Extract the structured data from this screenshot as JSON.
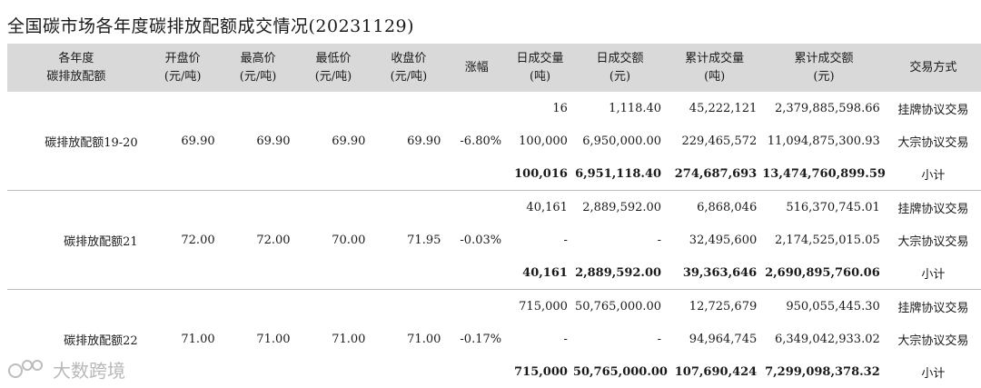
{
  "title": "全国碳市场各年度碳排放配额成交情况(20231129)",
  "headers": [
    {
      "l1": "各年度",
      "l2": "碳排放配额"
    },
    {
      "l1": "开盘价",
      "l2": "(元/吨)"
    },
    {
      "l1": "最高价",
      "l2": "(元/吨)"
    },
    {
      "l1": "最低价",
      "l2": "(元/吨)"
    },
    {
      "l1": "收盘价",
      "l2": "(元/吨)"
    },
    {
      "l1": "涨幅",
      "l2": ""
    },
    {
      "l1": "日成交量",
      "l2": "(吨)"
    },
    {
      "l1": "日成交额",
      "l2": "(元)"
    },
    {
      "l1": "累计成交量",
      "l2": "(吨)"
    },
    {
      "l1": "累计成交额",
      "l2": "(元)"
    },
    {
      "l1": "交易方式",
      "l2": ""
    }
  ],
  "groups": [
    {
      "name": "碳排放配额19-20",
      "open": "69.90",
      "high": "69.90",
      "low": "69.90",
      "close": "69.90",
      "change": "-6.80%",
      "rows": [
        {
          "vol": "16",
          "amt": "1,118.40",
          "cum_vol": "45,222,121",
          "cum_amt": "2,379,885,598.66",
          "mode": "挂牌协议交易"
        },
        {
          "vol": "100,000",
          "amt": "6,950,000.00",
          "cum_vol": "229,465,572",
          "cum_amt": "11,094,875,300.93",
          "mode": "大宗协议交易"
        },
        {
          "vol": "100,016",
          "amt": "6,951,118.40",
          "cum_vol": "274,687,693",
          "cum_amt": "13,474,760,899.59",
          "mode": "小计"
        }
      ]
    },
    {
      "name": "碳排放配额21",
      "open": "72.00",
      "high": "72.00",
      "low": "70.00",
      "close": "71.95",
      "change": "-0.03%",
      "rows": [
        {
          "vol": "40,161",
          "amt": "2,889,592.00",
          "cum_vol": "6,868,046",
          "cum_amt": "516,370,745.01",
          "mode": "挂牌协议交易"
        },
        {
          "vol": "-",
          "amt": "-",
          "cum_vol": "32,495,600",
          "cum_amt": "2,174,525,015.05",
          "mode": "大宗协议交易"
        },
        {
          "vol": "40,161",
          "amt": "2,889,592.00",
          "cum_vol": "39,363,646",
          "cum_amt": "2,690,895,760.06",
          "mode": "小计"
        }
      ]
    },
    {
      "name": "碳排放配额22",
      "open": "71.00",
      "high": "71.00",
      "low": "71.00",
      "close": "71.00",
      "change": "-0.17%",
      "rows": [
        {
          "vol": "715,000",
          "amt": "50,765,000.00",
          "cum_vol": "12,725,679",
          "cum_amt": "950,055,445.30",
          "mode": "挂牌协议交易"
        },
        {
          "vol": "-",
          "amt": "-",
          "cum_vol": "94,964,745",
          "cum_amt": "6,349,042,933.02",
          "mode": "大宗协议交易"
        },
        {
          "vol": "715,000",
          "amt": "50,765,000.00",
          "cum_vol": "107,690,424",
          "cum_amt": "7,299,098,378.32",
          "mode": "小计"
        }
      ]
    }
  ],
  "watermark": "大数跨境"
}
